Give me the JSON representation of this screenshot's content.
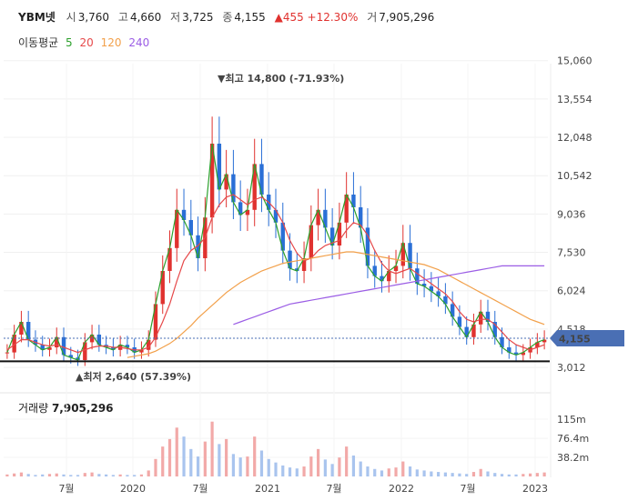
{
  "header": {
    "symbol": "YBM넷",
    "open_label": "시",
    "open": "3,760",
    "high_label": "고",
    "high": "4,660",
    "low_label": "저",
    "low": "3,725",
    "close_label": "종",
    "close": "4,155",
    "change": "▲455 +12.30%",
    "volume_label": "거",
    "volume": "7,905,296"
  },
  "moving_avg": {
    "label": "이동평균",
    "items": [
      {
        "name": "5",
        "color": "#2ca02c"
      },
      {
        "name": "20",
        "color": "#e6494a"
      },
      {
        "name": "120",
        "color": "#f2a04a"
      },
      {
        "name": "240",
        "color": "#9b5de5"
      }
    ]
  },
  "volume_panel": {
    "label": "거래량",
    "value": "7,905,296"
  },
  "chart_data": [
    {
      "type": "candlestick",
      "title": "",
      "ylim": [
        2800,
        15300
      ],
      "y_ticks": [
        "15,060",
        "13,554",
        "12,048",
        "10,542",
        "9,036",
        "7,530",
        "6,024",
        "4,518",
        "3,012"
      ],
      "y_tick_values": [
        15060,
        13554,
        12048,
        10542,
        9036,
        7530,
        6024,
        4518,
        3012
      ],
      "x_ticks": [
        "7월",
        "2020",
        "7월",
        "2021",
        "7월",
        "2022",
        "7월",
        "2023"
      ],
      "current_price": {
        "label": "4,155",
        "value": 4155,
        "color": "#4a6fb4"
      },
      "support_line": 3250,
      "annotations": [
        {
          "text": "▼최고 14,800 (-71.93%)",
          "value": 14800
        },
        {
          "text": "▲최저 2,640 (57.39%)",
          "value": 2640
        }
      ],
      "series": [
        {
          "name": "5",
          "color": "#2ca02c",
          "values": [
            3600,
            4300,
            4800,
            4100,
            3900,
            3700,
            3800,
            4200,
            3500,
            3400,
            3300,
            4000,
            4300,
            3900,
            3800,
            3700,
            3900,
            3800,
            3600,
            3700,
            4100,
            5500,
            6800,
            7700,
            9200,
            8800,
            8200,
            7300,
            8900,
            11800,
            10000,
            10600,
            9500,
            9000,
            9200,
            11000,
            9800,
            9200,
            8700,
            7600,
            6900,
            6800,
            7300,
            8600,
            9200,
            8500,
            7800,
            8700,
            9800,
            9300,
            8500,
            7000,
            6600,
            6400,
            6800,
            7000,
            7900,
            6900,
            6300,
            6200,
            6000,
            5800,
            5500,
            5000,
            4600,
            4200,
            4700,
            5200,
            4800,
            4200,
            3800,
            3600,
            3500,
            3600,
            3800,
            4000,
            4100
          ]
        },
        {
          "name": "20",
          "color": "#e6494a",
          "values": [
            3700,
            3900,
            4100,
            4100,
            4000,
            3900,
            3850,
            3900,
            3800,
            3700,
            3600,
            3700,
            3800,
            3850,
            3850,
            3800,
            3800,
            3750,
            3700,
            3700,
            3800,
            4200,
            4800,
            5500,
            6400,
            7200,
            7600,
            7800,
            8100,
            8900,
            9400,
            9700,
            9800,
            9600,
            9400,
            9600,
            9700,
            9500,
            9200,
            8700,
            8000,
            7500,
            7200,
            7300,
            7600,
            7800,
            7900,
            8000,
            8400,
            8700,
            8600,
            8200,
            7600,
            7100,
            6800,
            6700,
            6800,
            6900,
            6700,
            6500,
            6300,
            6100,
            5900,
            5600,
            5200,
            4900,
            4800,
            4900,
            4900,
            4700,
            4400,
            4100,
            3900,
            3800,
            3700,
            3800,
            3900
          ]
        },
        {
          "name": "120",
          "color": "#f2a04a",
          "values": [
            null,
            null,
            null,
            null,
            null,
            null,
            null,
            null,
            null,
            null,
            null,
            null,
            null,
            null,
            null,
            null,
            null,
            3400,
            3450,
            3500,
            3550,
            3650,
            3800,
            3950,
            4150,
            4400,
            4650,
            4950,
            5200,
            5450,
            5700,
            5950,
            6150,
            6350,
            6500,
            6650,
            6800,
            6900,
            7000,
            7100,
            7150,
            7200,
            7250,
            7300,
            7350,
            7400,
            7450,
            7500,
            7550,
            7550,
            7500,
            7450,
            7400,
            7350,
            7300,
            7250,
            7200,
            7150,
            7100,
            7050,
            6950,
            6850,
            6700,
            6550,
            6400,
            6250,
            6100,
            5950,
            5800,
            5650,
            5500,
            5350,
            5200,
            5050,
            4900,
            4800,
            4700
          ]
        },
        {
          "name": "240",
          "color": "#9b5de5",
          "values": [
            null,
            null,
            null,
            null,
            null,
            null,
            null,
            null,
            null,
            null,
            null,
            null,
            null,
            null,
            null,
            null,
            null,
            null,
            null,
            null,
            null,
            null,
            null,
            null,
            null,
            null,
            null,
            null,
            null,
            null,
            null,
            null,
            4700,
            4800,
            4900,
            5000,
            5100,
            5200,
            5300,
            5400,
            5500,
            5550,
            5600,
            5650,
            5700,
            5750,
            5800,
            5850,
            5900,
            5950,
            6000,
            6050,
            6100,
            6150,
            6200,
            6250,
            6300,
            6350,
            6400,
            6450,
            6500,
            6550,
            6600,
            6650,
            6700,
            6750,
            6800,
            6850,
            6900,
            6950,
            7000,
            7000,
            7000,
            7000,
            7000,
            7000,
            7000
          ]
        }
      ]
    },
    {
      "type": "bar",
      "title": "",
      "y_ticks": [
        "115m",
        "76.4m",
        "38.2m"
      ],
      "y_tick_values": [
        115,
        76.4,
        38.2
      ],
      "ylim": [
        0,
        135
      ],
      "values": [
        4,
        6,
        8,
        5,
        3,
        4,
        5,
        6,
        4,
        3,
        3,
        7,
        8,
        5,
        4,
        3,
        4,
        3,
        3,
        4,
        12,
        35,
        60,
        75,
        98,
        80,
        55,
        40,
        70,
        110,
        65,
        75,
        45,
        38,
        40,
        80,
        52,
        35,
        28,
        22,
        18,
        16,
        20,
        40,
        55,
        34,
        25,
        38,
        60,
        42,
        30,
        20,
        15,
        12,
        16,
        18,
        30,
        20,
        14,
        12,
        10,
        9,
        8,
        7,
        6,
        5,
        9,
        15,
        10,
        7,
        5,
        4,
        4,
        5,
        6,
        7,
        8
      ]
    }
  ]
}
